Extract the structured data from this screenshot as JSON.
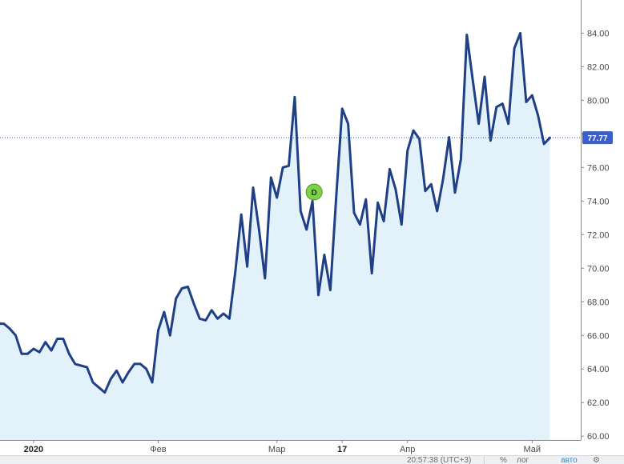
{
  "chart_data": {
    "type": "area",
    "y_ticks": [
      "60.00",
      "62.00",
      "64.00",
      "66.00",
      "68.00",
      "70.00",
      "72.00",
      "74.00",
      "76.00",
      "78.00",
      "80.00",
      "82.00",
      "84.00"
    ],
    "ylim": [
      59.2,
      85.4
    ],
    "x_labels": [
      {
        "text": "2020",
        "bold": true,
        "index": 6
      },
      {
        "text": "Фев",
        "bold": false,
        "index": 27
      },
      {
        "text": "Мар",
        "bold": false,
        "index": 47
      },
      {
        "text": "17",
        "bold": true,
        "index": 58
      },
      {
        "text": "Апр",
        "bold": false,
        "index": 69
      },
      {
        "text": "Май",
        "bold": false,
        "index": 90
      }
    ],
    "series": [
      {
        "values": [
          66.7,
          66.7,
          66.4,
          66.0,
          64.9,
          64.9,
          65.2,
          65.0,
          65.6,
          65.1,
          65.8,
          65.8,
          64.9,
          64.3,
          64.2,
          64.1,
          63.2,
          62.9,
          62.6,
          63.4,
          63.9,
          63.2,
          63.8,
          64.3,
          64.3,
          64.0,
          63.2,
          66.3,
          67.4,
          66.0,
          68.2,
          68.8,
          68.9,
          67.9,
          67.0,
          66.9,
          67.5,
          67.0,
          67.3,
          67.0,
          69.8,
          73.2,
          70.1,
          74.8,
          72.3,
          69.4,
          75.4,
          74.2,
          76.0,
          76.1,
          80.2,
          73.4,
          72.3,
          74.0,
          68.4,
          70.8,
          68.7,
          74.3,
          79.5,
          78.6,
          73.3,
          72.6,
          74.1,
          69.7,
          73.9,
          72.8,
          75.9,
          74.7,
          72.6,
          77.0,
          78.2,
          77.7,
          74.6,
          75.0,
          73.4,
          75.3,
          77.8,
          74.5,
          76.5,
          83.9,
          81.2,
          78.6,
          81.4,
          77.6,
          79.6,
          79.8,
          78.6,
          83.1,
          84.0,
          79.9,
          80.3,
          79.1,
          77.4,
          77.77
        ]
      }
    ],
    "current_value": "77.77",
    "event_marker": {
      "label": "D",
      "index": 53
    },
    "grid": false,
    "colors": {
      "line": "#1f3f86",
      "fill": "#e2f1fa",
      "price_tag": "#3c5ec8",
      "marker": "#7ed04a"
    }
  },
  "bottom_bar": {
    "time": "20:57:38 (UTC+3)",
    "separator": "|",
    "percent_label": "%",
    "log_label": "лог",
    "auto_label": "авто",
    "settings_icon": "gear-icon",
    "settings_glyph": "⚙"
  }
}
